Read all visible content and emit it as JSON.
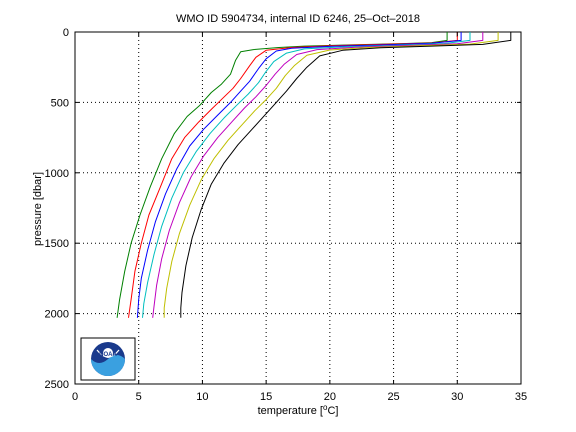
{
  "chart_data": {
    "type": "line",
    "title": "WMO ID 5904734, internal ID 6246, 25–Oct–2018",
    "xlabel": "temperature [°C]",
    "xlabel_main": "temperature [",
    "xlabel_unit": "o",
    "xlabel_end": "C]",
    "ylabel": "pressure [dbar]",
    "xlim": [
      0,
      35
    ],
    "ylim": [
      0,
      2500
    ],
    "y_reversed": true,
    "grid": "dotted",
    "x_ticks": [
      "0",
      "5",
      "10",
      "15",
      "20",
      "25",
      "30",
      "35"
    ],
    "y_ticks": [
      "0",
      "500",
      "1000",
      "1500",
      "2000",
      "2500"
    ],
    "series": [
      {
        "color": "#008000",
        "points": [
          [
            29.2,
            0
          ],
          [
            29.2,
            60
          ],
          [
            28,
            75
          ],
          [
            26,
            82
          ],
          [
            22,
            90
          ],
          [
            18,
            100
          ],
          [
            16,
            110
          ],
          [
            14,
            125
          ],
          [
            13,
            140
          ],
          [
            12.6,
            200
          ],
          [
            12.2,
            300
          ],
          [
            11.5,
            370
          ],
          [
            10.7,
            430
          ],
          [
            9.8,
            520
          ],
          [
            8.8,
            600
          ],
          [
            7.8,
            720
          ],
          [
            6.8,
            900
          ],
          [
            5.9,
            1100
          ],
          [
            5.1,
            1300
          ],
          [
            4.4,
            1500
          ],
          [
            3.9,
            1700
          ],
          [
            3.5,
            1900
          ],
          [
            3.3,
            2030
          ]
        ]
      },
      {
        "color": "#ff0000",
        "points": [
          [
            30.0,
            0
          ],
          [
            30.0,
            60
          ],
          [
            28,
            78
          ],
          [
            24,
            88
          ],
          [
            20,
            98
          ],
          [
            17,
            110
          ],
          [
            15,
            130
          ],
          [
            14.2,
            180
          ],
          [
            13.7,
            240
          ],
          [
            13,
            330
          ],
          [
            12.4,
            400
          ],
          [
            11.6,
            470
          ],
          [
            10.7,
            550
          ],
          [
            9.7,
            640
          ],
          [
            8.6,
            750
          ],
          [
            7.6,
            900
          ],
          [
            6.7,
            1100
          ],
          [
            5.8,
            1300
          ],
          [
            5.2,
            1500
          ],
          [
            4.7,
            1700
          ],
          [
            4.4,
            1900
          ],
          [
            4.2,
            2030
          ]
        ]
      },
      {
        "color": "#0000ff",
        "points": [
          [
            30.3,
            0
          ],
          [
            30.3,
            60
          ],
          [
            28,
            80
          ],
          [
            24,
            92
          ],
          [
            20,
            102
          ],
          [
            17,
            115
          ],
          [
            15.8,
            135
          ],
          [
            15,
            190
          ],
          [
            14.4,
            260
          ],
          [
            13.7,
            350
          ],
          [
            13,
            420
          ],
          [
            12.2,
            500
          ],
          [
            11.2,
            590
          ],
          [
            10.1,
            690
          ],
          [
            9,
            810
          ],
          [
            8,
            970
          ],
          [
            7.1,
            1150
          ],
          [
            6.3,
            1350
          ],
          [
            5.7,
            1550
          ],
          [
            5.2,
            1750
          ],
          [
            5,
            1900
          ],
          [
            4.9,
            2030
          ]
        ]
      },
      {
        "color": "#00bfbf",
        "points": [
          [
            31.0,
            0
          ],
          [
            31.0,
            60
          ],
          [
            29,
            82
          ],
          [
            25,
            95
          ],
          [
            21,
            106
          ],
          [
            18,
            120
          ],
          [
            16.6,
            150
          ],
          [
            15.6,
            210
          ],
          [
            15,
            280
          ],
          [
            14.4,
            360
          ],
          [
            13.6,
            440
          ],
          [
            12.7,
            520
          ],
          [
            11.7,
            610
          ],
          [
            10.6,
            720
          ],
          [
            9.5,
            850
          ],
          [
            8.5,
            1000
          ],
          [
            7.6,
            1180
          ],
          [
            6.8,
            1380
          ],
          [
            6.2,
            1580
          ],
          [
            5.7,
            1780
          ],
          [
            5.4,
            1930
          ],
          [
            5.3,
            2030
          ]
        ]
      },
      {
        "color": "#bf00bf",
        "points": [
          [
            32.0,
            0
          ],
          [
            32.0,
            60
          ],
          [
            30,
            84
          ],
          [
            26,
            96
          ],
          [
            22,
            108
          ],
          [
            19,
            125
          ],
          [
            17.4,
            160
          ],
          [
            16.4,
            230
          ],
          [
            15.7,
            300
          ],
          [
            15,
            380
          ],
          [
            14.2,
            460
          ],
          [
            13.3,
            540
          ],
          [
            12.3,
            640
          ],
          [
            11.2,
            750
          ],
          [
            10.1,
            880
          ],
          [
            9.1,
            1030
          ],
          [
            8.2,
            1210
          ],
          [
            7.4,
            1410
          ],
          [
            6.8,
            1610
          ],
          [
            6.4,
            1800
          ],
          [
            6.2,
            1950
          ],
          [
            6.1,
            2030
          ]
        ]
      },
      {
        "color": "#bfbf00",
        "points": [
          [
            33.2,
            0
          ],
          [
            33.2,
            60
          ],
          [
            31,
            86
          ],
          [
            27,
            98
          ],
          [
            23,
            110
          ],
          [
            20,
            128
          ],
          [
            18.2,
            165
          ],
          [
            17.2,
            240
          ],
          [
            16.5,
            310
          ],
          [
            15.8,
            400
          ],
          [
            15,
            480
          ],
          [
            14.1,
            560
          ],
          [
            13.1,
            660
          ],
          [
            12,
            770
          ],
          [
            10.9,
            900
          ],
          [
            9.9,
            1050
          ],
          [
            9,
            1230
          ],
          [
            8.2,
            1430
          ],
          [
            7.6,
            1630
          ],
          [
            7.2,
            1820
          ],
          [
            7,
            1960
          ],
          [
            7,
            2030
          ]
        ]
      },
      {
        "color": "#000000",
        "points": [
          [
            34.2,
            0
          ],
          [
            34.2,
            60
          ],
          [
            32,
            88
          ],
          [
            28,
            100
          ],
          [
            24,
            112
          ],
          [
            21,
            130
          ],
          [
            19.2,
            170
          ],
          [
            18.2,
            250
          ],
          [
            17.4,
            330
          ],
          [
            16.6,
            420
          ],
          [
            15.8,
            500
          ],
          [
            14.9,
            590
          ],
          [
            13.9,
            690
          ],
          [
            12.8,
            800
          ],
          [
            11.7,
            930
          ],
          [
            10.7,
            1080
          ],
          [
            9.9,
            1260
          ],
          [
            9.2,
            1460
          ],
          [
            8.7,
            1660
          ],
          [
            8.4,
            1850
          ],
          [
            8.3,
            1960
          ],
          [
            8.3,
            2030
          ]
        ]
      }
    ]
  }
}
